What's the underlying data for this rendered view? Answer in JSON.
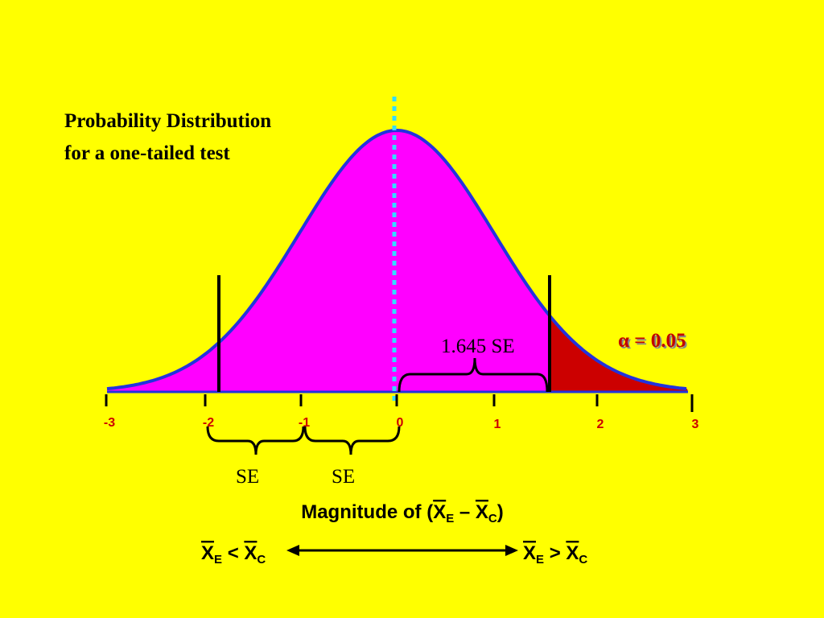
{
  "title": [
    "Probability Distribution",
    "for a one-tailed test"
  ],
  "axis_ticks": [
    "-3",
    "-2",
    "-1",
    "0",
    "1",
    "2",
    "3"
  ],
  "critical_label": "1.645 SE",
  "alpha_label": "α = 0.05",
  "se_labels": [
    "SE",
    "SE"
  ],
  "axis_title": {
    "prefix": "Magnitude of (",
    "x1": "X",
    "sub1": "E",
    "dash": " – ",
    "x2": "X",
    "sub2": "C",
    "suffix": ")"
  },
  "left_end": {
    "x1": "X",
    "sub1": "E",
    "op": " < ",
    "x2": "X",
    "sub2": "C"
  },
  "right_end": {
    "x1": "X",
    "sub1": "E",
    "op": " > ",
    "x2": "X",
    "sub2": "C"
  }
}
